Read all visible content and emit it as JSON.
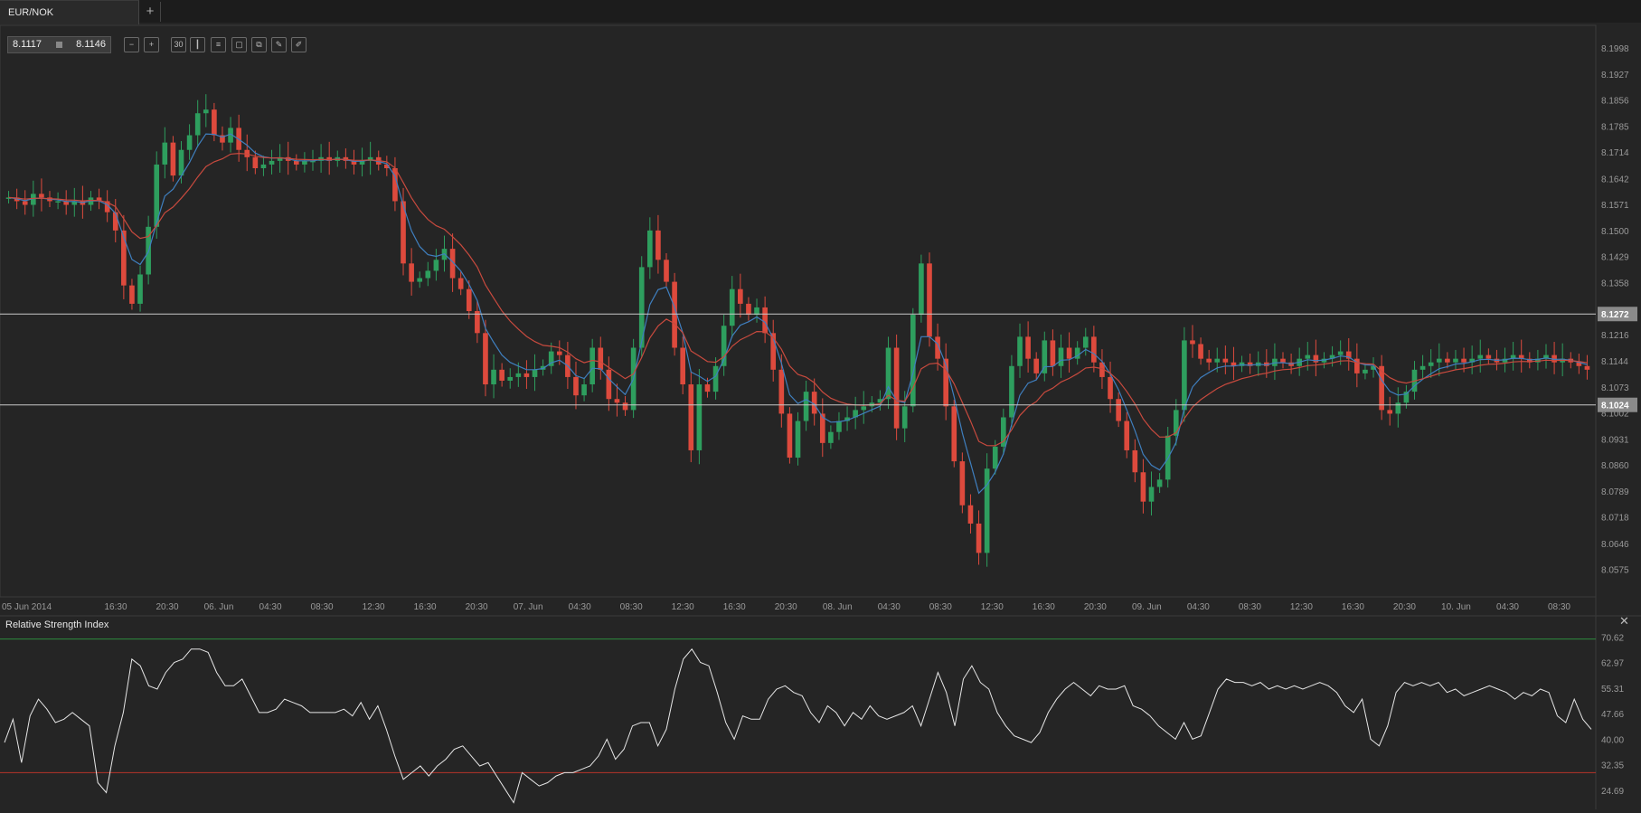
{
  "tab": {
    "label": "EUR/NOK",
    "add_label": "+"
  },
  "quote": {
    "bid": "8.1117",
    "ask": "8.1146"
  },
  "toolbar": {
    "icons": [
      "zoom-out-icon",
      "zoom-in-icon",
      "timeframe-30-icon",
      "chart-type-icon",
      "indicators-icon",
      "scale-icon",
      "clone-icon",
      "draw-icon",
      "pen-icon"
    ],
    "timeframe_label": "30"
  },
  "colors": {
    "background": "#252525",
    "up": "#2e9e5e",
    "down": "#dd4a3d",
    "ma_fast": "#3f7fbf",
    "ma_slow": "#c84a3e",
    "rsi_line": "#e6e6e6",
    "rsi_upper": "#2e8b3e",
    "rsi_lower": "#b8342a"
  },
  "chart_data": [
    {
      "type": "candlestick",
      "title": "EUR/NOK",
      "timeframe": "30 min",
      "y_ticks": [
        "8.1998",
        "8.1927",
        "8.1856",
        "8.1785",
        "8.1714",
        "8.1642",
        "8.1571",
        "8.1500",
        "8.1429",
        "8.1358",
        "8.1216",
        "8.1144",
        "8.1073",
        "8.1002",
        "8.0931",
        "8.0860",
        "8.0789",
        "8.0718",
        "8.0646",
        "8.0575"
      ],
      "ylim": [
        8.05,
        8.206
      ],
      "x_ticks": [
        "05 Jun 2014",
        "16:30",
        "20:30",
        "06. Jun",
        "04:30",
        "08:30",
        "12:30",
        "16:30",
        "20:30",
        "07. Jun",
        "04:30",
        "08:30",
        "12:30",
        "16:30",
        "20:30",
        "08. Jun",
        "04:30",
        "08:30",
        "12:30",
        "16:30",
        "20:30",
        "09. Jun",
        "04:30",
        "08:30",
        "12:30",
        "16:30",
        "20:30",
        "10. Jun",
        "04:30",
        "08:30"
      ],
      "price_lines": [
        {
          "label": "8.1272",
          "value": 8.1272
        },
        {
          "label": "8.1024",
          "value": 8.1024
        }
      ],
      "close": [
        8.159,
        8.158,
        8.157,
        8.16,
        8.159,
        8.158,
        8.158,
        8.157,
        8.158,
        8.157,
        8.159,
        8.158,
        8.155,
        8.15,
        8.135,
        8.13,
        8.138,
        8.151,
        8.168,
        8.174,
        8.165,
        8.172,
        8.176,
        8.182,
        8.183,
        8.176,
        8.174,
        8.178,
        8.172,
        8.17,
        8.167,
        8.168,
        8.169,
        8.17,
        8.169,
        8.168,
        8.169,
        8.169,
        8.17,
        8.169,
        8.17,
        8.169,
        8.168,
        8.169,
        8.17,
        8.168,
        8.167,
        8.158,
        8.141,
        8.136,
        8.137,
        8.139,
        8.142,
        8.145,
        8.137,
        8.134,
        8.128,
        8.122,
        8.108,
        8.112,
        8.109,
        8.11,
        8.111,
        8.11,
        8.112,
        8.113,
        8.117,
        8.116,
        8.11,
        8.105,
        8.108,
        8.118,
        8.112,
        8.104,
        8.103,
        8.101,
        8.118,
        8.14,
        8.15,
        8.142,
        8.136,
        8.118,
        8.108,
        8.09,
        8.108,
        8.106,
        8.113,
        8.124,
        8.134,
        8.13,
        8.127,
        8.129,
        8.122,
        8.112,
        8.1,
        8.088,
        8.098,
        8.106,
        8.1,
        8.092,
        8.095,
        8.098,
        8.099,
        8.101,
        8.102,
        8.103,
        8.104,
        8.118,
        8.096,
        8.102,
        8.127,
        8.141,
        8.121,
        8.115,
        8.102,
        8.087,
        8.075,
        8.07,
        8.062,
        8.085,
        8.091,
        8.099,
        8.113,
        8.121,
        8.115,
        8.111,
        8.12,
        8.113,
        8.118,
        8.115,
        8.118,
        8.121,
        8.114,
        8.11,
        8.104,
        8.098,
        8.09,
        8.084,
        8.076,
        8.08,
        8.082,
        8.094,
        8.101,
        8.12,
        8.119,
        8.115,
        8.114,
        8.115,
        8.114,
        8.113,
        8.114,
        8.113,
        8.114,
        8.113,
        8.115,
        8.114,
        8.113,
        8.115,
        8.116,
        8.114,
        8.115,
        8.116,
        8.117,
        8.115,
        8.111,
        8.112,
        8.113,
        8.101,
        8.1,
        8.103,
        8.106,
        8.112,
        8.113,
        8.114,
        8.115,
        8.114,
        8.115,
        8.114,
        8.115,
        8.116,
        8.115,
        8.114,
        8.115,
        8.116,
        8.115,
        8.114,
        8.115,
        8.116,
        8.114,
        8.115,
        8.114,
        8.113,
        8.112
      ]
    },
    {
      "type": "line",
      "title": "Relative Strength Index",
      "y_ticks": [
        "70.62",
        "62.97",
        "55.31",
        "47.66",
        "40.00",
        "32.35",
        "24.69"
      ],
      "ylim": [
        19.0,
        74.5
      ],
      "levels": [
        70,
        30
      ],
      "series": [
        {
          "values": [
            39,
            46,
            33,
            47,
            52,
            49,
            45,
            46,
            48,
            46,
            44,
            27,
            24,
            38,
            48,
            64,
            62,
            56,
            55,
            60,
            63,
            64,
            67,
            67,
            66,
            60,
            56,
            56,
            58,
            53,
            48,
            48,
            49,
            52,
            51,
            50,
            48,
            48,
            48,
            48,
            49,
            47,
            51,
            46,
            50,
            43,
            35,
            28,
            30,
            32,
            29,
            32,
            34,
            37,
            38,
            35,
            32,
            33,
            29,
            25,
            21,
            30,
            28,
            26,
            27,
            29,
            30,
            30,
            31,
            32,
            35,
            40,
            34,
            37,
            44,
            45,
            45,
            38,
            43,
            55,
            64,
            67,
            63,
            62,
            54,
            45,
            40,
            47,
            46,
            46,
            52,
            55,
            56,
            54,
            53,
            48,
            45,
            50,
            48,
            44,
            48,
            46,
            50,
            47,
            46,
            47,
            48,
            50,
            44,
            52,
            60,
            54,
            44,
            58,
            62,
            57,
            55,
            48,
            44,
            41,
            40,
            39,
            42,
            48,
            52,
            55,
            57,
            55,
            53,
            56,
            55,
            55,
            56,
            50,
            49,
            47,
            44,
            42,
            40,
            45,
            40,
            41,
            48,
            55,
            58,
            57,
            57,
            56,
            57,
            55,
            56,
            55,
            56,
            55,
            56,
            57,
            56,
            54,
            50,
            48,
            52,
            40,
            38,
            44,
            54,
            57,
            56,
            57,
            56,
            57,
            54,
            55,
            53,
            54,
            55,
            56,
            55,
            54,
            52,
            54,
            53,
            55,
            54,
            47,
            45,
            52,
            46,
            43
          ]
        }
      ]
    }
  ]
}
